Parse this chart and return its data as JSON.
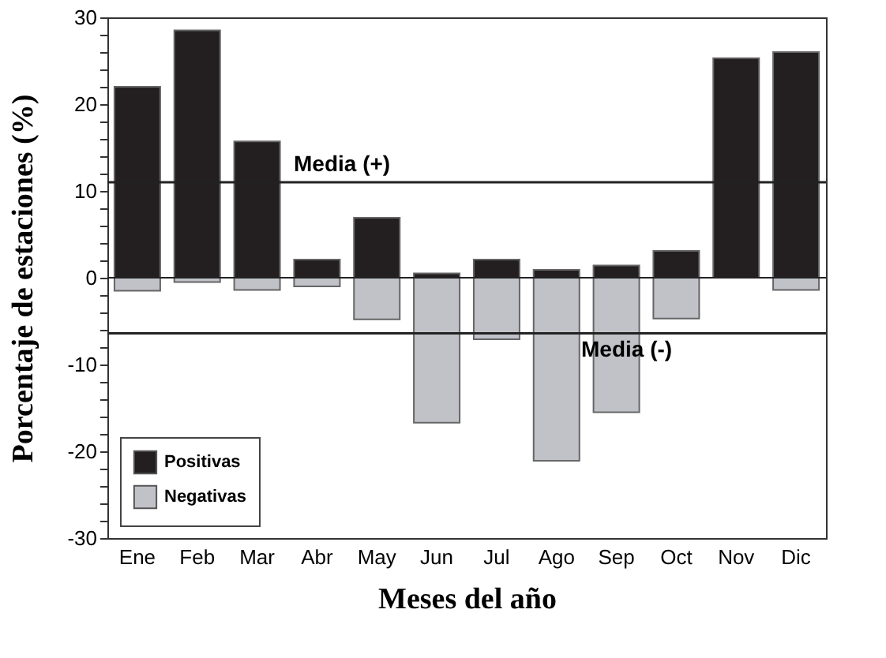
{
  "chart_data": {
    "type": "bar",
    "xlabel": "Meses del año",
    "ylabel": "Porcentaje de estaciones (%)",
    "stacked": true,
    "categories": [
      "Ene",
      "Feb",
      "Mar",
      "Abr",
      "May",
      "Jun",
      "Jul",
      "Ago",
      "Sep",
      "Oct",
      "Nov",
      "Dic"
    ],
    "series": [
      {
        "name": "Positivas",
        "color": "#231f20",
        "values": [
          22,
          28.5,
          15.7,
          2.1,
          6.9,
          0.5,
          2.1,
          0.9,
          1.4,
          3.1,
          25.3,
          26
        ]
      },
      {
        "name": "Negativas",
        "color": "#c0c2c8",
        "values": [
          -1.5,
          -0.5,
          -1.4,
          -1,
          -4.8,
          -16.7,
          -7.1,
          -21.1,
          -15.5,
          -4.7,
          null,
          -1.4
        ]
      }
    ],
    "ylim": [
      -30,
      30
    ],
    "yticks": [
      -30,
      {
        "value": -28,
        "label": null
      },
      {
        "value": -26,
        "label": null
      },
      {
        "value": -24,
        "label": null
      },
      {
        "value": -22,
        "label": null
      },
      -20,
      {
        "value": -18,
        "label": null
      },
      {
        "value": -16,
        "label": null
      },
      {
        "value": -14,
        "label": null
      },
      {
        "value": -12,
        "label": null
      },
      -10,
      {
        "value": -8,
        "label": null
      },
      {
        "value": -6,
        "label": null
      },
      {
        "value": -4,
        "label": null
      },
      {
        "value": -2,
        "label": null
      },
      0,
      {
        "value": 2,
        "label": null
      },
      {
        "value": 4,
        "label": null
      },
      {
        "value": 6,
        "label": null
      },
      {
        "value": 8,
        "label": null
      },
      10,
      {
        "value": 12,
        "label": null
      },
      {
        "value": 14,
        "label": null
      },
      {
        "value": 16,
        "label": null
      },
      {
        "value": 18,
        "label": null
      },
      20,
      {
        "value": 22,
        "label": null
      },
      {
        "value": 24,
        "label": null
      },
      {
        "value": 26,
        "label": null
      },
      {
        "value": 28,
        "label": null
      },
      30
    ],
    "ref_lines": [
      {
        "axis": "y",
        "value": 11,
        "label": "Media (+)"
      },
      {
        "axis": "y",
        "value": -6.4,
        "label": "Media (-)"
      },
      {
        "axis": "y",
        "value": 0,
        "label": null
      }
    ],
    "legend": "bottom left"
  }
}
